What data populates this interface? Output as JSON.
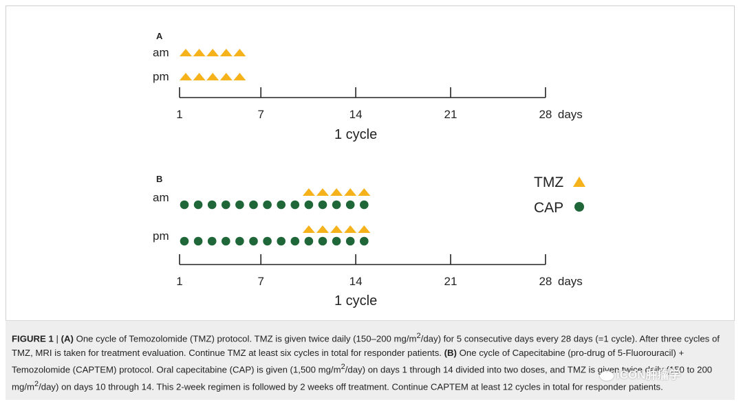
{
  "panel_a": {
    "label": "A",
    "rows": [
      {
        "label": "am",
        "tmz_days": [
          1,
          2,
          3,
          4,
          5
        ],
        "cap_days": []
      },
      {
        "label": "pm",
        "tmz_days": [
          1,
          2,
          3,
          4,
          5
        ],
        "cap_days": []
      }
    ],
    "ticks": [
      {
        "day": 1,
        "label": "1"
      },
      {
        "day": 7,
        "label": "7"
      },
      {
        "day": 14,
        "label": "14"
      },
      {
        "day": 21,
        "label": "21"
      },
      {
        "day": 28,
        "label": "28"
      }
    ],
    "unit": "days",
    "cycle_label": "1 cycle"
  },
  "panel_b": {
    "label": "B",
    "rows": [
      {
        "label": "am",
        "tmz_days": [
          10,
          11,
          12,
          13,
          14
        ],
        "cap_days": [
          1,
          2,
          3,
          4,
          5,
          6,
          7,
          8,
          9,
          10,
          11,
          12,
          13,
          14
        ]
      },
      {
        "label": "pm",
        "tmz_days": [
          10,
          11,
          12,
          13,
          14
        ],
        "cap_days": [
          1,
          2,
          3,
          4,
          5,
          6,
          7,
          8,
          9,
          10,
          11,
          12,
          13,
          14
        ]
      }
    ],
    "ticks": [
      {
        "day": 1,
        "label": "1"
      },
      {
        "day": 7,
        "label": "7"
      },
      {
        "day": 14,
        "label": "14"
      },
      {
        "day": 21,
        "label": "21"
      },
      {
        "day": 28,
        "label": "28"
      }
    ],
    "unit": "days",
    "cycle_label": "1 cycle"
  },
  "legend": {
    "tmz": "TMZ",
    "cap": "CAP"
  },
  "colors": {
    "tmz": "#f5b21b",
    "cap": "#1f6638",
    "axis": "#222222"
  },
  "caption": {
    "figure_label": "FIGURE 1",
    "separator": " | ",
    "part_a_label": "(A)",
    "part_a_text_1": " One cycle of Temozolomide (TMZ) protocol. TMZ is given twice daily (150–200 mg/m",
    "sup_1": "2",
    "part_a_text_2": "/day) for 5 consecutive days every 28 days (=1 cycle). After three cycles of TMZ, MRI is taken for treatment evaluation. Continue TMZ at least six cycles in total for responder patients. ",
    "part_b_label": "(B)",
    "part_b_text_1": " One cycle of Capecitabine (pro-drug of 5-Fluorouracil) + Temozolomide (CAPTEM) protocol. Oral capecitabine (CAP) is given (1,500 mg/m",
    "sup_2": "2",
    "part_b_text_2": "/day) on days 1 through 14 divided into two doses, and TMZ is given twice daily (150 to 200 mg/m",
    "sup_3": "2",
    "part_b_text_3": "/day) on days 10 through 14. This 2-week regimen is followed by 2 weeks off treatment. Continue CAPTEM at least 12 cycles in total for responder patients."
  },
  "watermark": "iCON肿瘤学"
}
